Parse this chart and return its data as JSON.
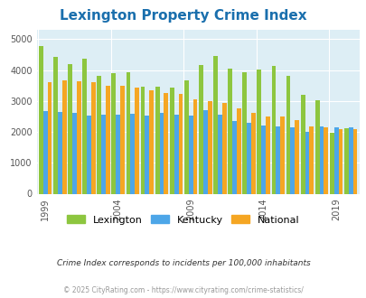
{
  "title": "Lexington Property Crime Index",
  "title_color": "#1a6fad",
  "years": [
    1999,
    2000,
    2001,
    2002,
    2003,
    2004,
    2005,
    2006,
    2007,
    2008,
    2009,
    2010,
    2011,
    2012,
    2013,
    2014,
    2015,
    2016,
    2017,
    2018,
    2019,
    2020
  ],
  "lexington": [
    4780,
    4430,
    4200,
    4370,
    3810,
    3890,
    3920,
    3470,
    3460,
    3430,
    3660,
    4170,
    4450,
    4030,
    3930,
    4010,
    4120,
    3800,
    3200,
    3020,
    1980,
    2130
  ],
  "kentucky": [
    2660,
    2650,
    2620,
    2520,
    2550,
    2560,
    2590,
    2540,
    2600,
    2550,
    2540,
    2700,
    2560,
    2360,
    2280,
    2200,
    2190,
    2140,
    1990,
    2190,
    2150,
    2150
  ],
  "national": [
    3600,
    3670,
    3650,
    3600,
    3500,
    3480,
    3420,
    3350,
    3270,
    3220,
    3060,
    2980,
    2930,
    2760,
    2610,
    2510,
    2490,
    2380,
    2190,
    2150,
    2100,
    2100
  ],
  "lex_color": "#8dc63f",
  "ky_color": "#4da6e8",
  "nat_color": "#f5a623",
  "plot_bg": "#ddeef5",
  "ylabel_vals": [
    0,
    1000,
    2000,
    3000,
    4000,
    5000
  ],
  "x_tick_years": [
    1999,
    2004,
    2009,
    2014,
    2019
  ],
  "footer_text1": "Crime Index corresponds to incidents per 100,000 inhabitants",
  "footer_text2": "© 2025 CityRating.com - https://www.cityrating.com/crime-statistics/",
  "legend_labels": [
    "Lexington",
    "Kentucky",
    "National"
  ]
}
